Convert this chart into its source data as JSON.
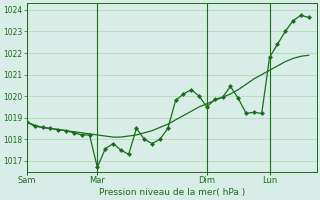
{
  "xlabel": "Pression niveau de la mer( hPa )",
  "bg_color": "#d8ede8",
  "grid_color": "#b0d4b0",
  "line_color": "#1a6e1a",
  "marker_color": "#1a6e1a",
  "ylim": [
    1016.5,
    1024.3
  ],
  "yticks": [
    1017,
    1018,
    1019,
    1020,
    1021,
    1022,
    1023,
    1024
  ],
  "day_labels": [
    "Sam",
    "Mar",
    "Dim",
    "Lun"
  ],
  "day_positions": [
    0,
    9,
    23,
    31
  ],
  "vline_positions": [
    0,
    9,
    23,
    31
  ],
  "xlim": [
    0,
    37
  ],
  "series1_x": [
    0,
    1,
    2,
    3,
    4,
    5,
    6,
    7,
    8,
    9,
    10,
    11,
    12,
    13,
    14,
    15,
    16,
    17,
    18,
    19,
    20,
    21,
    22,
    23,
    24,
    25,
    26,
    27,
    28,
    29,
    30,
    31,
    32,
    33,
    34,
    35,
    36
  ],
  "series1_y": [
    1018.8,
    1018.65,
    1018.55,
    1018.5,
    1018.45,
    1018.4,
    1018.35,
    1018.3,
    1018.25,
    1018.2,
    1018.15,
    1018.1,
    1018.1,
    1018.15,
    1018.2,
    1018.3,
    1018.4,
    1018.55,
    1018.7,
    1018.9,
    1019.1,
    1019.3,
    1019.5,
    1019.65,
    1019.8,
    1019.95,
    1020.1,
    1020.3,
    1020.55,
    1020.8,
    1021.0,
    1021.2,
    1021.4,
    1021.6,
    1021.75,
    1021.85,
    1021.9
  ],
  "series2_x": [
    0,
    1,
    2,
    3,
    4,
    5,
    6,
    7,
    8,
    9,
    10,
    11,
    12,
    13,
    14,
    15,
    16,
    17,
    18,
    19,
    20,
    21,
    22,
    23,
    24,
    25,
    26,
    27,
    28,
    29,
    30,
    31,
    32,
    33,
    34,
    35,
    36
  ],
  "series2_y": [
    1018.8,
    1018.6,
    1018.55,
    1018.5,
    1018.45,
    1018.4,
    1018.3,
    1018.2,
    1018.2,
    1016.7,
    1017.55,
    1017.8,
    1017.5,
    1017.3,
    1018.5,
    1018.0,
    1017.8,
    1018.0,
    1018.5,
    1019.8,
    1020.1,
    1020.3,
    1020.0,
    1019.5,
    1019.85,
    1019.95,
    1020.45,
    1019.9,
    1019.2,
    1019.25,
    1019.2,
    1021.8,
    1022.4,
    1023.0,
    1023.5,
    1023.75,
    1023.65
  ],
  "series3_x": [
    0,
    9,
    36
  ],
  "series3_y": [
    1018.8,
    1018.2,
    1021.85
  ]
}
